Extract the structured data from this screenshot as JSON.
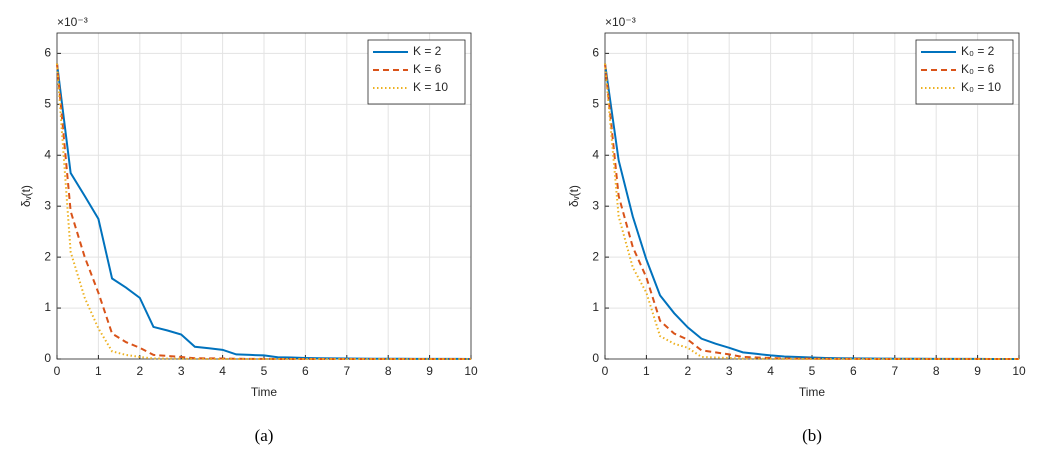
{
  "chart_data": [
    {
      "type": "line",
      "xlabel": "Time",
      "ylabel": "δᵥ(t)",
      "y_multiplier": "×10⁻³",
      "caption": "(a)",
      "x": [
        0,
        0.33,
        0.67,
        1,
        1.33,
        1.67,
        2,
        2.33,
        2.67,
        3,
        3.33,
        3.67,
        4,
        4.33,
        4.67,
        5,
        5.33,
        5.67,
        6,
        6.33,
        6.67,
        7,
        7.33,
        7.67,
        8,
        8.33,
        8.67,
        9,
        9.33,
        9.67,
        10
      ],
      "series": [
        {
          "name": "K = 2",
          "color": "#0072bd",
          "line_style": "solid",
          "values": [
            5.8,
            3.65,
            3.2,
            2.75,
            1.58,
            1.4,
            1.2,
            0.63,
            0.56,
            0.48,
            0.24,
            0.21,
            0.18,
            0.09,
            0.08,
            0.07,
            0.035,
            0.03,
            0.02,
            0.015,
            0.012,
            0.01,
            0.008,
            0.006,
            0.005,
            0.004,
            0.003,
            0.003,
            0.002,
            0.002,
            0.001
          ]
        },
        {
          "name": "K = 6",
          "color": "#d95319",
          "line_style": "dashed",
          "values": [
            5.8,
            2.9,
            2.0,
            1.3,
            0.5,
            0.33,
            0.22,
            0.08,
            0.06,
            0.04,
            0.015,
            0.012,
            0.01,
            0.004,
            0.003,
            0.002,
            0.001,
            0.001,
            0.001,
            0,
            0,
            0,
            0,
            0,
            0,
            0,
            0,
            0,
            0,
            0,
            0
          ]
        },
        {
          "name": "K = 10",
          "color": "#edb120",
          "line_style": "dotted",
          "values": [
            5.8,
            2.1,
            1.2,
            0.6,
            0.15,
            0.08,
            0.04,
            0.01,
            0.008,
            0.005,
            0.002,
            0.001,
            0.001,
            0,
            0,
            0,
            0,
            0,
            0,
            0,
            0,
            0,
            0,
            0,
            0,
            0,
            0,
            0,
            0,
            0,
            0
          ]
        }
      ],
      "xlim": [
        0,
        10
      ],
      "xticks": [
        0,
        1,
        2,
        3,
        4,
        5,
        6,
        7,
        8,
        9,
        10
      ],
      "ylim": [
        0,
        6.4
      ],
      "yticks": [
        0,
        1,
        2,
        3,
        4,
        5,
        6
      ],
      "grid": true,
      "legend": "upper right"
    },
    {
      "type": "line",
      "xlabel": "Time",
      "ylabel": "δᵥ(t)",
      "y_multiplier": "×10⁻³",
      "caption": "(b)",
      "x": [
        0,
        0.33,
        0.67,
        1,
        1.33,
        1.67,
        2,
        2.33,
        2.67,
        3,
        3.33,
        3.67,
        4,
        4.33,
        4.67,
        5,
        5.33,
        5.67,
        6,
        6.33,
        6.67,
        7,
        7.33,
        7.67,
        8,
        8.33,
        8.67,
        9,
        9.33,
        9.67,
        10
      ],
      "series": [
        {
          "name": "K₀ = 2",
          "color": "#0072bd",
          "line_style": "solid",
          "values": [
            5.8,
            3.9,
            2.8,
            1.95,
            1.25,
            0.9,
            0.62,
            0.4,
            0.3,
            0.22,
            0.13,
            0.1,
            0.07,
            0.05,
            0.04,
            0.03,
            0.02,
            0.015,
            0.012,
            0.01,
            0.008,
            0.006,
            0.005,
            0.004,
            0.003,
            0.003,
            0.002,
            0.002,
            0.001,
            0.001,
            0.001
          ]
        },
        {
          "name": "K₀ = 6",
          "color": "#d95319",
          "line_style": "dashed",
          "values": [
            5.8,
            3.2,
            2.2,
            1.6,
            0.75,
            0.5,
            0.38,
            0.17,
            0.13,
            0.09,
            0.04,
            0.03,
            0.02,
            0.01,
            0.008,
            0.006,
            0.004,
            0.003,
            0.002,
            0.001,
            0.001,
            0.001,
            0,
            0,
            0,
            0,
            0,
            0,
            0,
            0,
            0
          ]
        },
        {
          "name": "K₀ = 10",
          "color": "#edb120",
          "line_style": "dotted",
          "values": [
            5.8,
            2.8,
            1.8,
            1.3,
            0.45,
            0.3,
            0.22,
            0.04,
            0.03,
            0.02,
            0.008,
            0.006,
            0.004,
            0.002,
            0.001,
            0.001,
            0,
            0,
            0,
            0,
            0,
            0,
            0,
            0,
            0,
            0,
            0,
            0,
            0,
            0,
            0
          ]
        }
      ],
      "xlim": [
        0,
        10
      ],
      "xticks": [
        0,
        1,
        2,
        3,
        4,
        5,
        6,
        7,
        8,
        9,
        10
      ],
      "ylim": [
        0,
        6.4
      ],
      "yticks": [
        0,
        1,
        2,
        3,
        4,
        5,
        6
      ],
      "grid": true,
      "legend": "upper right"
    }
  ]
}
